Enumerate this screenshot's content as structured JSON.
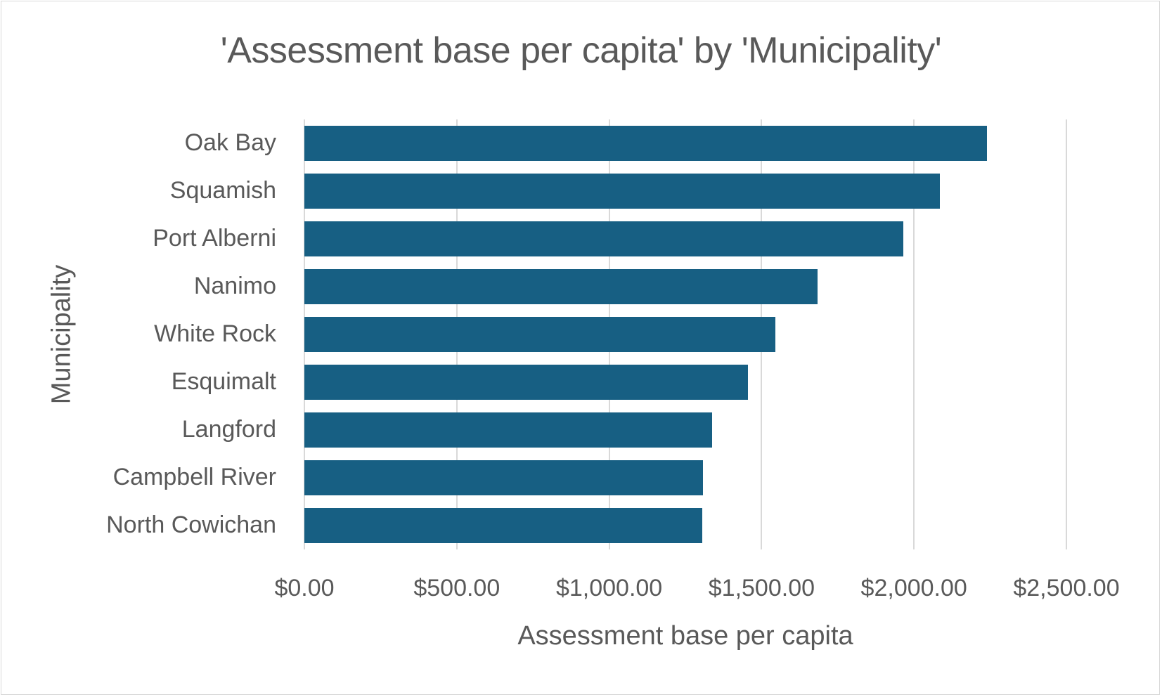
{
  "chart_data": {
    "type": "bar",
    "orientation": "horizontal",
    "title": "'Assessment base per capita' by 'Municipality'",
    "xlabel": "Assessment base per capita",
    "ylabel": "Municipality",
    "categories": [
      "Oak Bay",
      "Squamish",
      "Port Alberni",
      "Nanimo",
      "White Rock",
      "Esquimalt",
      "Langford",
      "Campbell River",
      "North Cowichan"
    ],
    "values": [
      2240,
      2086,
      1964,
      1684,
      1546,
      1456,
      1338,
      1308,
      1306
    ],
    "xlim": [
      0,
      2500
    ],
    "xticks": [
      "$0.00",
      "$500.00",
      "$1,000.00",
      "$1,500.00",
      "$2,000.00",
      "$2,500.00"
    ],
    "grid": true,
    "legend": "none",
    "bar_color": "#175f83"
  }
}
